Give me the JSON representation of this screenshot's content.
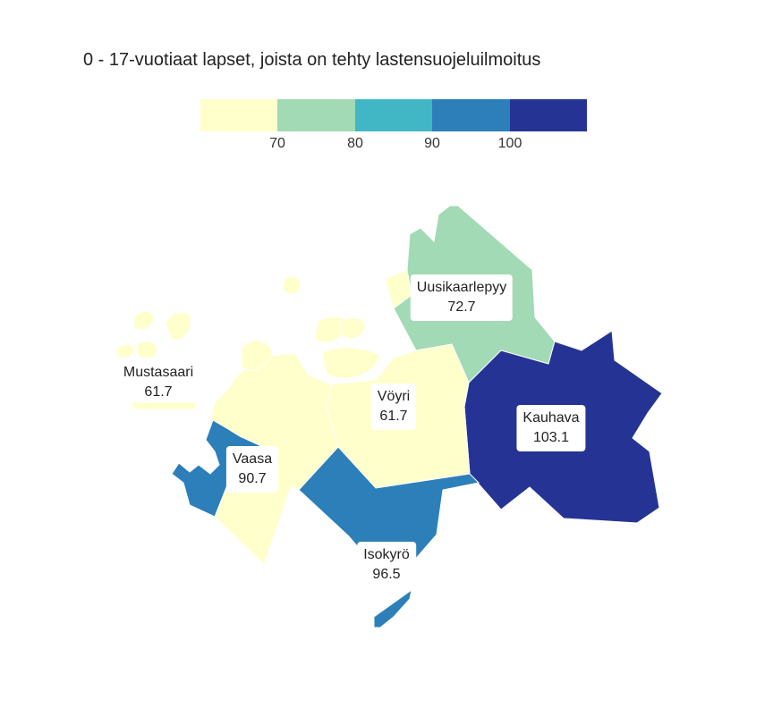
{
  "title": "0 - 17-vuotiaat lapset, joista on tehty lastensuojeluilmoitus",
  "legend": {
    "colors": [
      "#ffffcc",
      "#a1dab4",
      "#41b6c4",
      "#2c7fb8",
      "#253494"
    ],
    "ticks": [
      "70",
      "80",
      "90",
      "100"
    ]
  },
  "chart_data": {
    "type": "choropleth",
    "regions": [
      {
        "name": "Uusikaarlepyy",
        "value": "72.7",
        "color": "#a1dab4"
      },
      {
        "name": "Kauhava",
        "value": "103.1",
        "color": "#253494"
      },
      {
        "name": "Mustasaari",
        "value": "61.7",
        "color": "#ffffcc"
      },
      {
        "name": "Vöyri",
        "value": "61.7",
        "color": "#ffffcc"
      },
      {
        "name": "Vaasa",
        "value": "90.7",
        "color": "#2c7fb8"
      },
      {
        "name": "Isokyrö",
        "value": "96.5",
        "color": "#2c7fb8"
      }
    ]
  }
}
